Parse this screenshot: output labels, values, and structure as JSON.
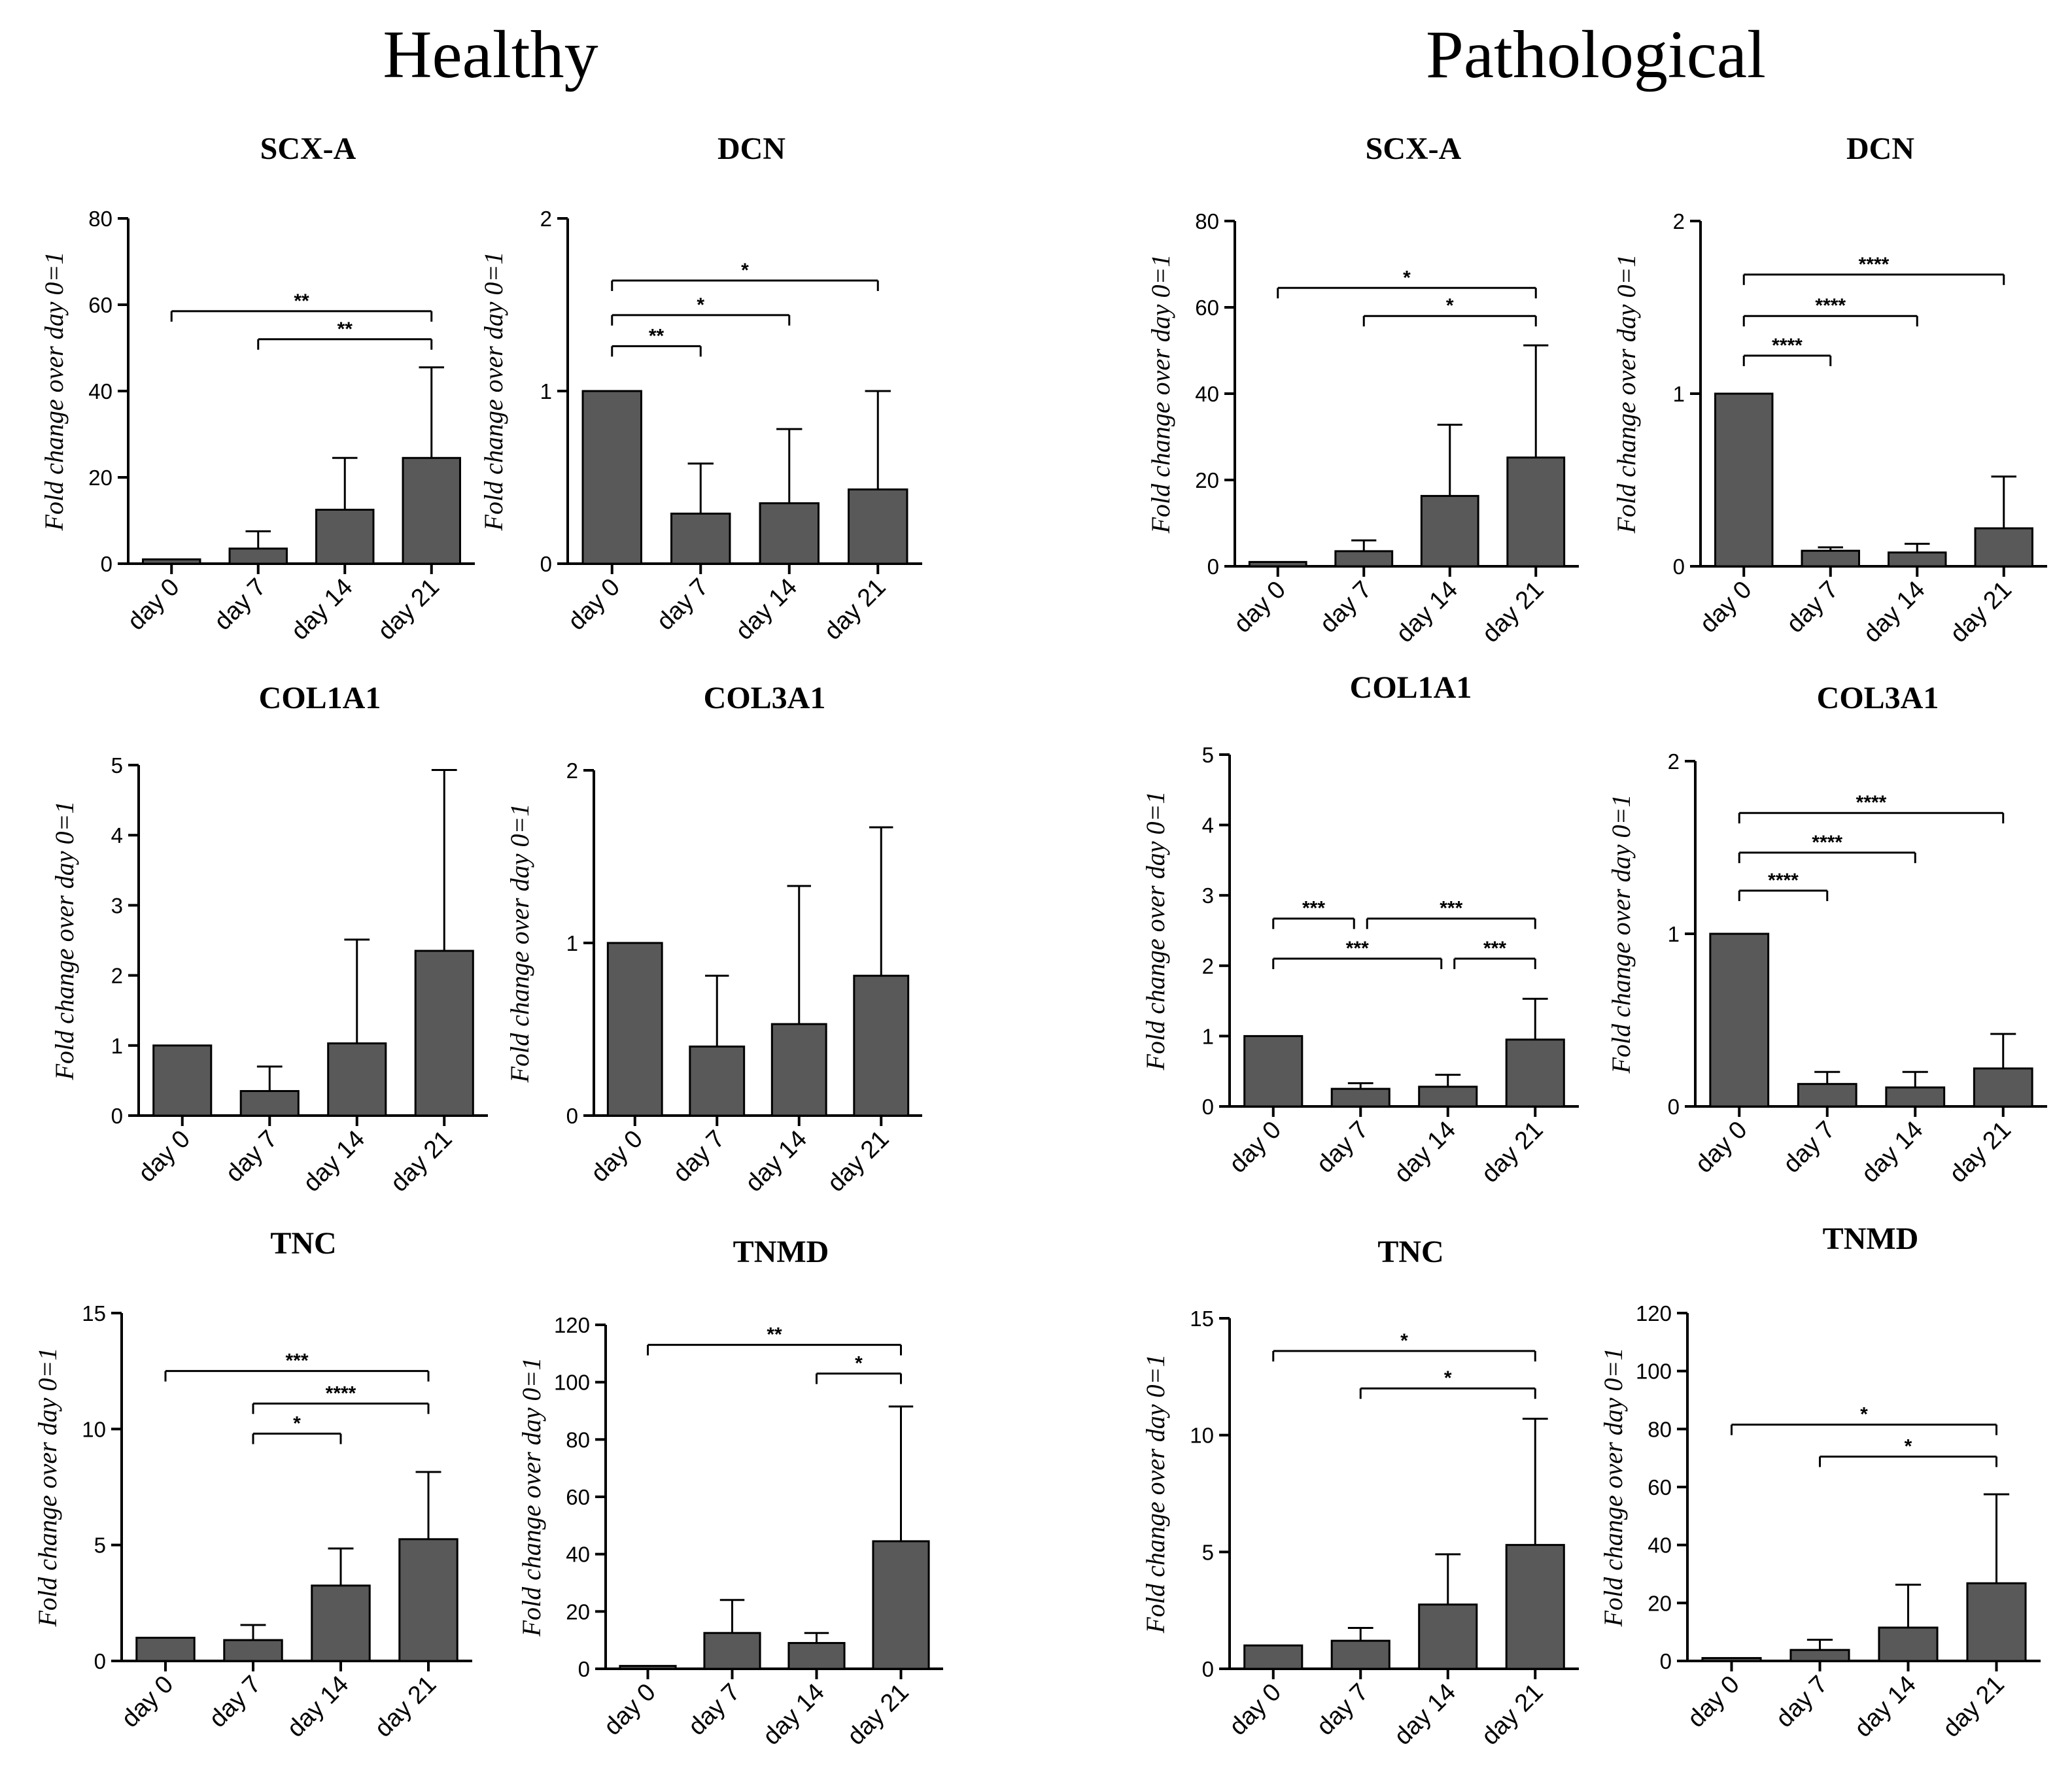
{
  "headings": {
    "left": "Healthy",
    "right": "Pathological"
  },
  "colors": {
    "bar": "#595959",
    "axis": "#000000"
  },
  "chart_data": [
    {
      "type": "bar",
      "group": "Healthy",
      "title": "SCX-A",
      "ylabel": "Fold change over day 0=1",
      "categories": [
        "day 0",
        "day 7",
        "day 14",
        "day 21"
      ],
      "values": [
        1,
        3.5,
        12.5,
        24.5
      ],
      "errors": [
        0,
        4,
        12,
        21
      ],
      "ylim": [
        0,
        80
      ],
      "yticks": [
        "0",
        "20",
        "40",
        "60",
        "80"
      ],
      "sig": [
        {
          "from": 0,
          "to": 3,
          "y": 58.5,
          "label": "**",
          "caps": "both"
        },
        {
          "from": 1,
          "to": 3,
          "y": 52,
          "label": "**",
          "caps": "both"
        }
      ]
    },
    {
      "type": "bar",
      "group": "Healthy",
      "title": "DCN",
      "ylabel": "Fold change over day 0=1",
      "categories": [
        "day 0",
        "day 7",
        "day 14",
        "day 21"
      ],
      "values": [
        1,
        0.29,
        0.35,
        0.43
      ],
      "errors": [
        0,
        0.29,
        0.43,
        0.57
      ],
      "ylim": [
        0,
        2
      ],
      "yticks": [
        "0",
        "1",
        "2"
      ],
      "sig": [
        {
          "from": 0,
          "to": 3,
          "y": 1.64,
          "label": "*",
          "caps": "both"
        },
        {
          "from": 0,
          "to": 2,
          "y": 1.44,
          "label": "*",
          "caps": "both"
        },
        {
          "from": 0,
          "to": 1,
          "y": 1.26,
          "label": "**",
          "caps": "both"
        }
      ]
    },
    {
      "type": "bar",
      "group": "Pathological",
      "title": "SCX-A",
      "ylabel": "Fold change over day 0=1",
      "categories": [
        "day 0",
        "day 7",
        "day 14",
        "day 21"
      ],
      "values": [
        1,
        3.5,
        16.3,
        25.2
      ],
      "errors": [
        0,
        2.5,
        16.5,
        26
      ],
      "ylim": [
        0,
        80
      ],
      "yticks": [
        "0",
        "20",
        "40",
        "60",
        "80"
      ],
      "sig": [
        {
          "from": 0,
          "to": 3,
          "y": 64.5,
          "label": "*",
          "caps": "both"
        },
        {
          "from": 1,
          "to": 3,
          "y": 58,
          "label": "*",
          "caps": "both"
        }
      ]
    },
    {
      "type": "bar",
      "group": "Pathological",
      "title": "DCN",
      "ylabel": "Fold change over day 0=1",
      "categories": [
        "day 0",
        "day 7",
        "day 14",
        "day 21"
      ],
      "values": [
        1,
        0.09,
        0.08,
        0.22
      ],
      "errors": [
        0,
        0.02,
        0.05,
        0.3
      ],
      "ylim": [
        0,
        2
      ],
      "yticks": [
        "0",
        "1",
        "2"
      ],
      "sig": [
        {
          "from": 0,
          "to": 3,
          "y": 1.69,
          "label": "****",
          "caps": "both"
        },
        {
          "from": 0,
          "to": 2,
          "y": 1.45,
          "label": "****",
          "caps": "both"
        },
        {
          "from": 0,
          "to": 1,
          "y": 1.22,
          "label": "****",
          "caps": "both"
        }
      ]
    },
    {
      "type": "bar",
      "group": "Healthy",
      "title": "COL1A1",
      "ylabel": "Fold change over day 0=1",
      "categories": [
        "day 0",
        "day 7",
        "day 14",
        "day 21"
      ],
      "values": [
        1,
        0.35,
        1.03,
        2.35
      ],
      "errors": [
        0,
        0.35,
        1.48,
        2.58
      ],
      "ylim": [
        0,
        5
      ],
      "yticks": [
        "0",
        "1",
        "2",
        "3",
        "4",
        "5"
      ],
      "sig": []
    },
    {
      "type": "bar",
      "group": "Healthy",
      "title": "COL3A1",
      "ylabel": "Fold change over day 0=1",
      "categories": [
        "day 0",
        "day 7",
        "day 14",
        "day 21"
      ],
      "values": [
        1,
        0.4,
        0.53,
        0.81
      ],
      "errors": [
        0,
        0.41,
        0.8,
        0.86
      ],
      "ylim": [
        0,
        2
      ],
      "yticks": [
        "0",
        "1",
        "2"
      ],
      "sig": []
    },
    {
      "type": "bar",
      "group": "Pathological",
      "title": "COL1A1",
      "ylabel": "Fold change over day 0=1",
      "categories": [
        "day 0",
        "day 7",
        "day 14",
        "day 21"
      ],
      "values": [
        1,
        0.25,
        0.28,
        0.95
      ],
      "errors": [
        0,
        0.08,
        0.17,
        0.58
      ],
      "ylim": [
        0,
        5
      ],
      "yticks": [
        "0",
        "1",
        "2",
        "3",
        "4",
        "5"
      ],
      "sig": [
        {
          "from": 0,
          "to": 1,
          "y": 2.67,
          "label": "***",
          "caps": "left"
        },
        {
          "from": 1,
          "to": 3,
          "y": 2.67,
          "label": "***",
          "caps": "right"
        },
        {
          "from": 0,
          "to": 2,
          "y": 2.1,
          "label": "***",
          "caps": "left"
        },
        {
          "from": 2,
          "to": 3,
          "y": 2.1,
          "label": "***",
          "caps": "right"
        }
      ]
    },
    {
      "type": "bar",
      "group": "Pathological",
      "title": "COL3A1",
      "ylabel": "Fold change over day 0=1",
      "categories": [
        "day 0",
        "day 7",
        "day 14",
        "day 21"
      ],
      "values": [
        1,
        0.13,
        0.11,
        0.22
      ],
      "errors": [
        0,
        0.07,
        0.09,
        0.2
      ],
      "ylim": [
        0,
        2
      ],
      "yticks": [
        "0",
        "1",
        "2"
      ],
      "sig": [
        {
          "from": 0,
          "to": 3,
          "y": 1.7,
          "label": "****",
          "caps": "both"
        },
        {
          "from": 0,
          "to": 2,
          "y": 1.47,
          "label": "****",
          "caps": "both"
        },
        {
          "from": 0,
          "to": 1,
          "y": 1.25,
          "label": "****",
          "caps": "both"
        }
      ]
    },
    {
      "type": "bar",
      "group": "Healthy",
      "title": "TNC",
      "ylabel": "Fold change over day 0=1",
      "categories": [
        "day 0",
        "day 7",
        "day 14",
        "day 21"
      ],
      "values": [
        1,
        0.9,
        3.25,
        5.25
      ],
      "errors": [
        0,
        0.65,
        1.6,
        2.9
      ],
      "ylim": [
        0,
        15
      ],
      "yticks": [
        "0",
        "5",
        "10",
        "15"
      ],
      "sig": [
        {
          "from": 0,
          "to": 3,
          "y": 12.5,
          "label": "***",
          "caps": "both"
        },
        {
          "from": 1,
          "to": 3,
          "y": 11.1,
          "label": "****",
          "caps": "both"
        },
        {
          "from": 1,
          "to": 2,
          "y": 9.8,
          "label": "*",
          "caps": "both"
        }
      ]
    },
    {
      "type": "bar",
      "group": "Healthy",
      "title": "TNMD",
      "ylabel": "Fold change over day 0=1",
      "categories": [
        "day 0",
        "day 7",
        "day 14",
        "day 21"
      ],
      "values": [
        1,
        12.5,
        9,
        44.5
      ],
      "errors": [
        0,
        11.5,
        3.5,
        47
      ],
      "ylim": [
        0,
        120
      ],
      "yticks": [
        "0",
        "20",
        "40",
        "60",
        "80",
        "100",
        "120"
      ],
      "sig": [
        {
          "from": 0,
          "to": 3,
          "y": 113,
          "label": "**",
          "caps": "both"
        },
        {
          "from": 2,
          "to": 3,
          "y": 103,
          "label": "*",
          "caps": "both"
        }
      ]
    },
    {
      "type": "bar",
      "group": "Pathological",
      "title": "TNC",
      "ylabel": "Fold change over day 0=1",
      "categories": [
        "day 0",
        "day 7",
        "day 14",
        "day 21"
      ],
      "values": [
        1,
        1.2,
        2.75,
        5.3
      ],
      "errors": [
        0,
        0.55,
        2.15,
        5.4
      ],
      "ylim": [
        0,
        15
      ],
      "yticks": [
        "0",
        "5",
        "10",
        "15"
      ],
      "sig": [
        {
          "from": 0,
          "to": 3,
          "y": 13.6,
          "label": "*",
          "caps": "both"
        },
        {
          "from": 1,
          "to": 3,
          "y": 12,
          "label": "*",
          "caps": "both"
        }
      ]
    },
    {
      "type": "bar",
      "group": "Pathological",
      "title": "TNMD",
      "ylabel": "Fold change over day 0=1",
      "categories": [
        "day 0",
        "day 7",
        "day 14",
        "day 21"
      ],
      "values": [
        1,
        3.8,
        11.5,
        26.8
      ],
      "errors": [
        0,
        3.5,
        14.8,
        30.7
      ],
      "ylim": [
        0,
        120
      ],
      "yticks": [
        "0",
        "20",
        "40",
        "60",
        "80",
        "100",
        "120"
      ],
      "sig": [
        {
          "from": 0,
          "to": 3,
          "y": 81.5,
          "label": "*",
          "caps": "both"
        },
        {
          "from": 1,
          "to": 3,
          "y": 70.5,
          "label": "*",
          "caps": "both"
        }
      ]
    }
  ]
}
